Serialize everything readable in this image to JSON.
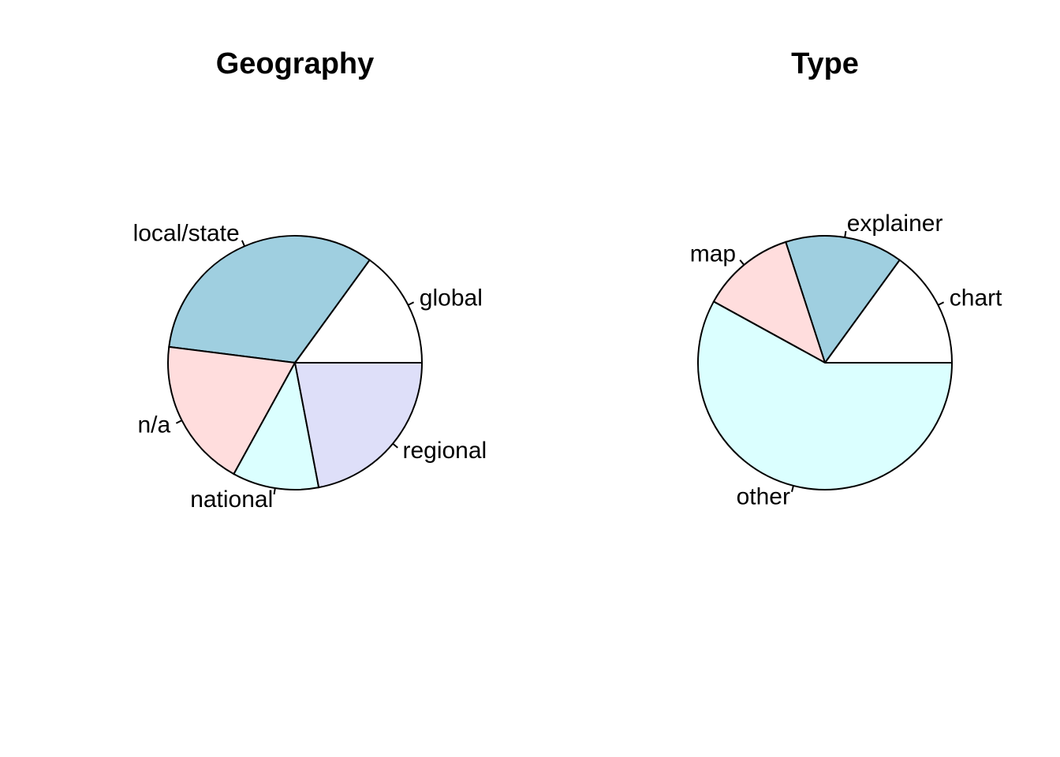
{
  "chart_data": [
    {
      "type": "pie",
      "title": "Geography",
      "start_angle_deg": 0,
      "direction": "counterclockwise",
      "slices": [
        {
          "label": "global",
          "value": 15,
          "color": "#ffffff"
        },
        {
          "label": "local/state",
          "value": 33,
          "color": "#9fcfe0"
        },
        {
          "label": "n/a",
          "value": 19,
          "color": "#ffdddd"
        },
        {
          "label": "national",
          "value": 11,
          "color": "#dbffff"
        },
        {
          "label": "regional",
          "value": 22,
          "color": "#dedff9"
        }
      ]
    },
    {
      "type": "pie",
      "title": "Type",
      "start_angle_deg": 0,
      "direction": "counterclockwise",
      "slices": [
        {
          "label": "chart",
          "value": 15,
          "color": "#ffffff"
        },
        {
          "label": "explainer",
          "value": 15,
          "color": "#9fcfe0"
        },
        {
          "label": "map",
          "value": 12,
          "color": "#ffdddd"
        },
        {
          "label": "other",
          "value": 58,
          "color": "#dbffff"
        }
      ]
    }
  ]
}
